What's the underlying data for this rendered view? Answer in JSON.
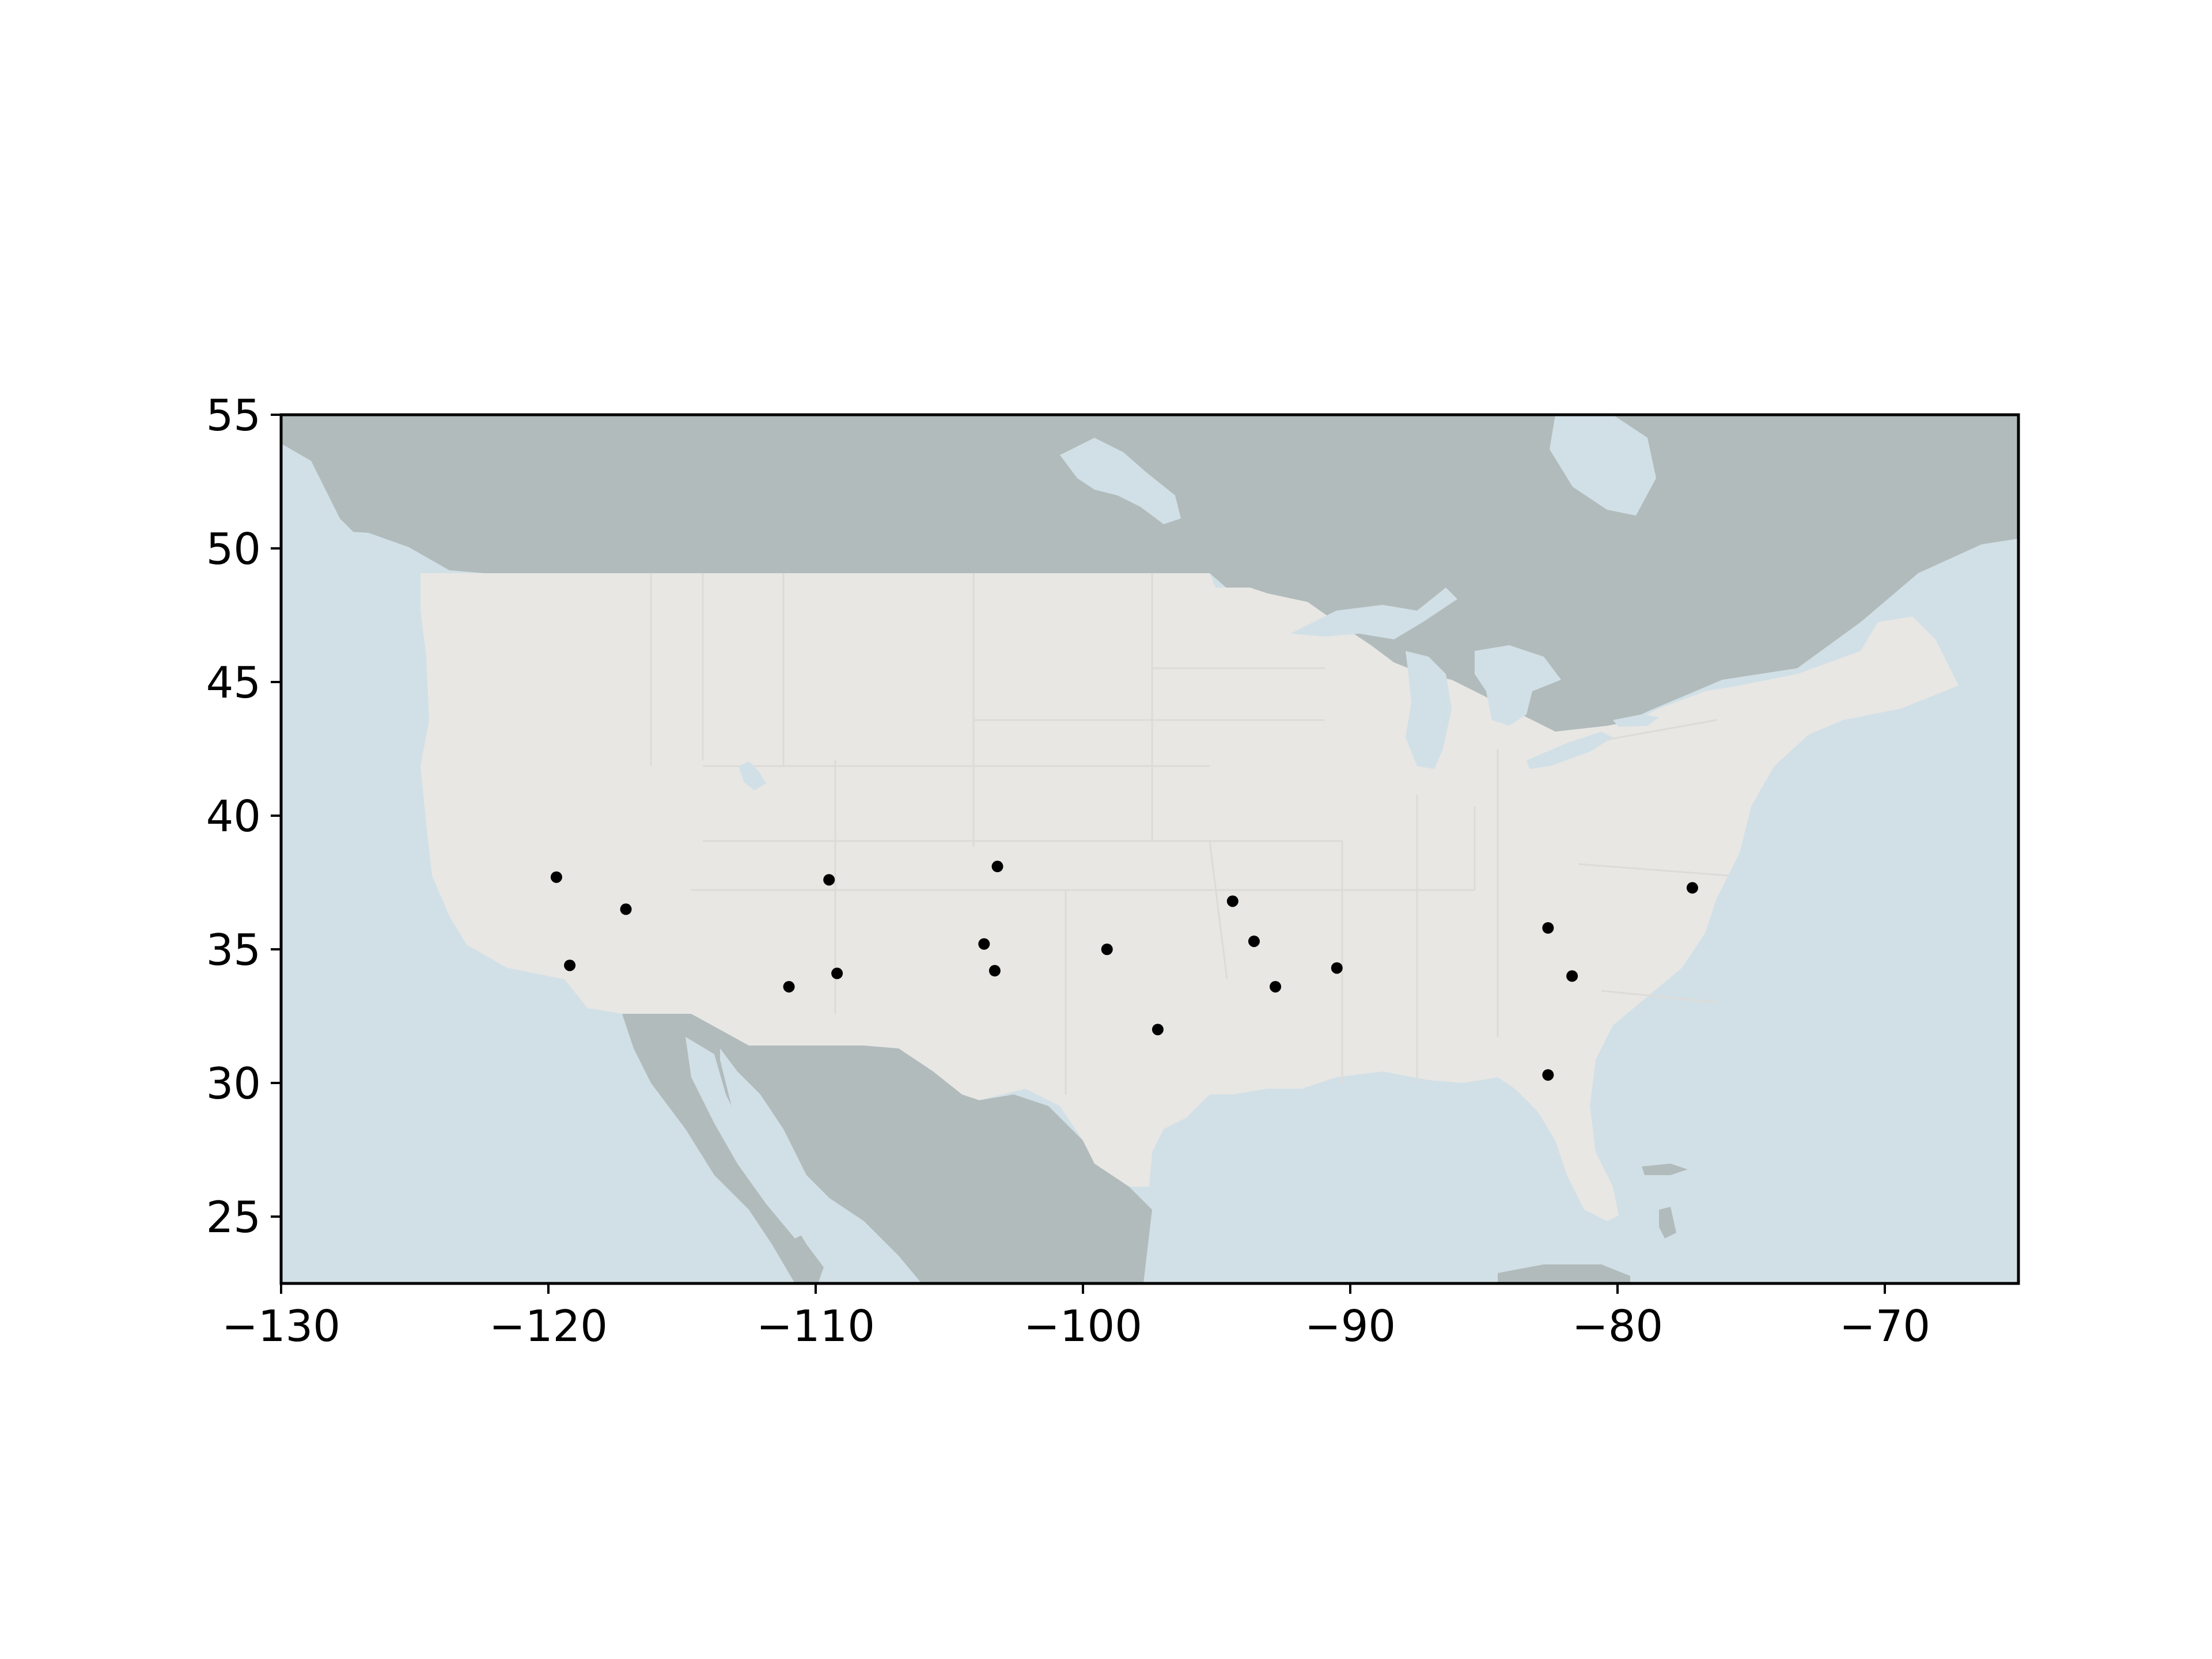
{
  "chart_data": {
    "type": "scatter",
    "title": "",
    "xlabel": "",
    "ylabel": "",
    "xlim": [
      -130,
      -65
    ],
    "ylim": [
      22.5,
      55
    ],
    "xticks": [
      -130,
      -120,
      -110,
      -100,
      -90,
      -80,
      -70
    ],
    "yticks": [
      25,
      30,
      35,
      40,
      45,
      50,
      55
    ],
    "xtick_labels": [
      "−130",
      "−120",
      "−110",
      "−100",
      "−90",
      "−80",
      "−70"
    ],
    "ytick_labels": [
      "25",
      "30",
      "35",
      "40",
      "45",
      "50",
      "55"
    ],
    "grid": false,
    "legend": "none",
    "series": [
      {
        "x": [
          -119.7,
          -119.2,
          -117.1,
          -109.5,
          -109.2,
          -111.0,
          -103.2,
          -103.7,
          -103.3,
          -99.1,
          -97.2,
          -94.4,
          -93.6,
          -92.8,
          -90.5,
          -82.6,
          -81.7,
          -82.6,
          -77.2
        ],
        "y": [
          37.7,
          34.4,
          36.5,
          37.6,
          34.1,
          33.6,
          38.1,
          35.2,
          34.2,
          35.0,
          32.0,
          36.8,
          35.3,
          33.6,
          34.3,
          35.8,
          34.0,
          30.3,
          37.3
        ]
      }
    ]
  },
  "colors": {
    "ocean": "#d1e0e6",
    "foreign_land": "#b1bbbc",
    "us_land": "#e8e7e4",
    "state_border": "#dcdbd8",
    "lakes": "#d1e0e6",
    "marker": "#000000",
    "axes": "#000000"
  }
}
